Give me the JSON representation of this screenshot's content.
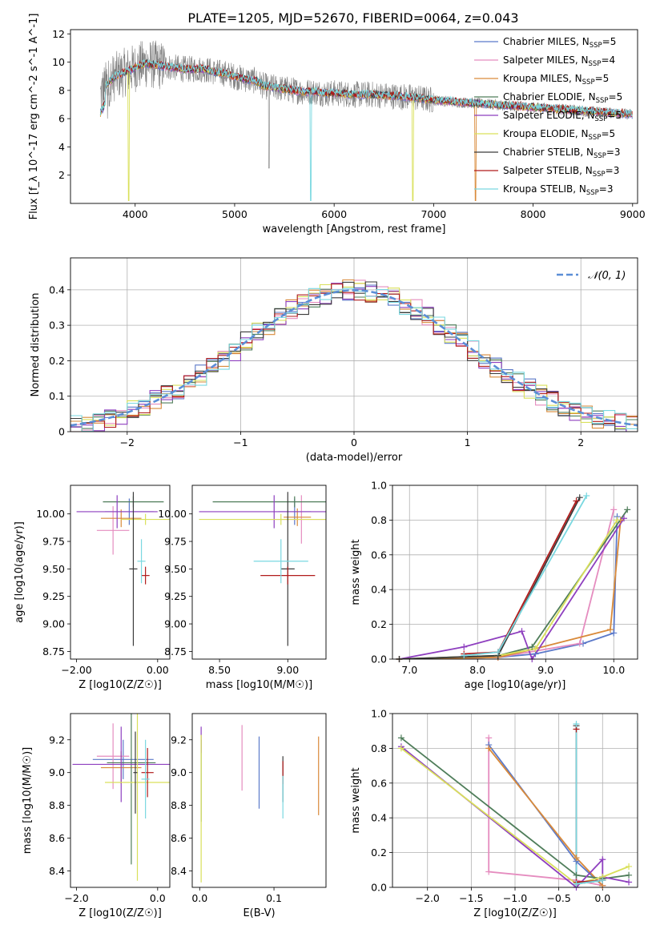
{
  "figure": {
    "title": "PLATE=1205, MJD=52670, FIBERID=0064, z=0.043"
  },
  "colors": {
    "Chabrier MILES": "#5b79c9",
    "Salpeter MILES": "#e58cbf",
    "Kroupa MILES": "#d98a3a",
    "Chabrier ELODIE": "#4f7d5a",
    "Salpeter ELODIE": "#8e3fbf",
    "Kroupa ELODIE": "#d9e05a",
    "Chabrier STELIB": "#3b3b3b",
    "Salpeter STELIB": "#b11b1b",
    "Kroupa STELIB": "#7ad8e0",
    "gaussian": "#5b8ed6"
  },
  "chart_data": [
    {
      "id": "spectrum",
      "type": "line",
      "xlabel": "wavelength [Angstrom, rest frame]",
      "ylabel": "Flux [f_λ 10^-17 erg cm^-2 s^-1 A^-1]",
      "xlim": [
        3350,
        9050
      ],
      "ylim": [
        0,
        12.3
      ],
      "xticks": [
        4000,
        5000,
        6000,
        7000,
        8000,
        9000
      ],
      "yticks": [
        2,
        4,
        6,
        8,
        10,
        12
      ],
      "legend_position": "upper right",
      "legend": [
        {
          "label": "Chabrier MILES",
          "nssp": "5"
        },
        {
          "label": "Salpeter MILES",
          "nssp": "4"
        },
        {
          "label": "Kroupa MILES",
          "nssp": "5"
        },
        {
          "label": "Chabrier ELODIE",
          "nssp": "5"
        },
        {
          "label": "Salpeter ELODIE",
          "nssp": "5"
        },
        {
          "label": "Kroupa ELODIE",
          "nssp": "5"
        },
        {
          "label": "Chabrier STELIB",
          "nssp": "3"
        },
        {
          "label": "Salpeter STELIB",
          "nssp": "3"
        },
        {
          "label": "Kroupa STELIB",
          "nssp": "3"
        }
      ],
      "continuum": {
        "x": [
          3650,
          3700,
          3800,
          3900,
          4000,
          4100,
          4200,
          4300,
          4400,
          4500,
          4600,
          4700,
          4800,
          4900,
          5000,
          5100,
          5200,
          5300,
          5400,
          5500,
          5600,
          5700,
          5800,
          5900,
          6000,
          6200,
          6400,
          6600,
          6800,
          7000,
          7200,
          7400,
          7600,
          7800,
          8000,
          8200,
          8400,
          8600,
          8800,
          9000
        ],
        "y": [
          7.6,
          8.3,
          9.0,
          9.3,
          9.6,
          9.9,
          9.8,
          9.7,
          9.6,
          9.5,
          9.5,
          9.5,
          9.3,
          9.2,
          9.0,
          8.8,
          8.7,
          8.3,
          8.2,
          8.1,
          8.0,
          7.9,
          7.9,
          7.8,
          7.8,
          7.7,
          7.7,
          7.6,
          7.5,
          7.3,
          7.2,
          7.1,
          7.0,
          6.9,
          6.8,
          6.7,
          6.6,
          6.5,
          6.4,
          6.3
        ]
      },
      "absorption_features_model": [
        {
          "x": 3935,
          "y": 0.2,
          "curve": "Kroupa ELODIE"
        },
        {
          "x": 5765,
          "y": 0.2,
          "curve": "Kroupa STELIB"
        },
        {
          "x": 6790,
          "y": 0.2,
          "curve": "Kroupa ELODIE"
        },
        {
          "x": 7420,
          "y": 0.2,
          "curve": "Kroupa MILES"
        }
      ]
    },
    {
      "id": "residuals",
      "type": "histogram",
      "xlabel": "(data-model)/error",
      "ylabel": "Normed distribution",
      "xlim": [
        -2.5,
        2.5
      ],
      "ylim": [
        0,
        0.49
      ],
      "xticks": [
        -2,
        -1,
        0,
        1,
        2
      ],
      "yticks": [
        0.0,
        0.1,
        0.2,
        0.3,
        0.4
      ],
      "grid": true,
      "legend_position": "upper right",
      "gaussian_label": "𝒩(0, 1)",
      "bin_width": 0.1,
      "reference": "gaussian N(0,1) with per-bin scatter per model"
    },
    {
      "id": "Z-age",
      "type": "errorbar",
      "xlabel": "Z [log10(Z/Z☉)]",
      "ylabel": "age  [log10(age/yr)]",
      "xlim": [
        -2.15,
        0.3
      ],
      "ylim": [
        8.68,
        10.26
      ],
      "xticks": [
        -2,
        0
      ],
      "yticks": [
        8.75,
        9.0,
        9.25,
        9.5,
        9.75,
        10.0
      ],
      "points": [
        {
          "model": "Chabrier MILES",
          "x": -0.7,
          "xerr": 0.6,
          "y": 10.02,
          "yerr": 0.12
        },
        {
          "model": "Salpeter MILES",
          "x": -1.1,
          "xerr": 0.4,
          "y": 9.85,
          "yerr": 0.22
        },
        {
          "model": "Kroupa MILES",
          "x": -0.9,
          "xerr": 0.5,
          "y": 9.96,
          "yerr": 0.08
        },
        {
          "model": "Chabrier ELODIE",
          "x": -0.6,
          "xerr": 0.75,
          "y": 10.11,
          "yerr": 0.05
        },
        {
          "model": "Salpeter ELODIE",
          "x": -1.0,
          "xerr": 1.0,
          "y": 10.02,
          "yerr": 0.15
        },
        {
          "model": "Kroupa ELODIE",
          "x": -0.3,
          "xerr": 0.6,
          "y": 9.95,
          "yerr": 0.05
        },
        {
          "model": "Chabrier STELIB",
          "x": -0.6,
          "xerr": 0.1,
          "y": 9.5,
          "yerr": 0.7
        },
        {
          "model": "Salpeter STELIB",
          "x": -0.3,
          "xerr": 0.1,
          "y": 9.44,
          "yerr": 0.08
        },
        {
          "model": "Kroupa STELIB",
          "x": -0.4,
          "xerr": 0.1,
          "y": 9.57,
          "yerr": 0.2
        }
      ]
    },
    {
      "id": "mass-age",
      "type": "errorbar",
      "xlabel": "mass [log10(M/M☉)]",
      "ylabel": "",
      "xlim": [
        8.3,
        9.28
      ],
      "ylim": [
        8.68,
        10.26
      ],
      "xticks": [
        8.5,
        9.0
      ],
      "yticks": [
        8.75,
        9.0,
        9.25,
        9.5,
        9.75,
        10.0
      ],
      "points": [
        {
          "model": "Chabrier MILES",
          "x": 9.05,
          "xerr": 0.12,
          "y": 10.02,
          "yerr": 0.12
        },
        {
          "model": "Salpeter MILES",
          "x": 9.1,
          "xerr": 0.3,
          "y": 9.95,
          "yerr": 0.22
        },
        {
          "model": "Kroupa MILES",
          "x": 9.07,
          "xerr": 0.1,
          "y": 9.97,
          "yerr": 0.08
        },
        {
          "model": "Chabrier ELODIE",
          "x": 9.05,
          "xerr": 0.6,
          "y": 10.11,
          "yerr": 0.05
        },
        {
          "model": "Salpeter ELODIE",
          "x": 8.9,
          "xerr": 0.55,
          "y": 10.02,
          "yerr": 0.15
        },
        {
          "model": "Kroupa ELODIE",
          "x": 8.95,
          "xerr": 0.6,
          "y": 9.95,
          "yerr": 0.05
        },
        {
          "model": "Chabrier STELIB",
          "x": 9.0,
          "xerr": 0.05,
          "y": 9.5,
          "yerr": 0.7
        },
        {
          "model": "Salpeter STELIB",
          "x": 9.0,
          "xerr": 0.2,
          "y": 9.44,
          "yerr": 0.08
        },
        {
          "model": "Kroupa STELIB",
          "x": 8.95,
          "xerr": 0.2,
          "y": 9.57,
          "yerr": 0.2
        }
      ]
    },
    {
      "id": "age-weight",
      "type": "line",
      "xlabel": "age  [log10(age/yr)]",
      "ylabel": "mass weight",
      "xlim": [
        6.75,
        10.35
      ],
      "ylim": [
        0,
        1
      ],
      "xticks": [
        7,
        8,
        9,
        10
      ],
      "yticks": [
        0.0,
        0.2,
        0.4,
        0.6,
        0.8,
        1.0
      ],
      "grid": true,
      "series": [
        {
          "model": "Chabrier MILES",
          "x": [
            6.85,
            8.3,
            8.85,
            9.55,
            10.0,
            10.05
          ],
          "y": [
            0.0,
            0.01,
            0.03,
            0.09,
            0.15,
            0.82
          ]
        },
        {
          "model": "Salpeter MILES",
          "x": [
            6.85,
            8.3,
            9.5,
            10.0
          ],
          "y": [
            0.0,
            0.01,
            0.09,
            0.86
          ]
        },
        {
          "model": "Kroupa MILES",
          "x": [
            6.85,
            8.3,
            8.85,
            9.95,
            10.1
          ],
          "y": [
            0.0,
            0.01,
            0.06,
            0.17,
            0.8
          ]
        },
        {
          "model": "Chabrier ELODIE",
          "x": [
            6.85,
            8.3,
            8.8,
            10.2
          ],
          "y": [
            0.0,
            0.02,
            0.07,
            0.86
          ]
        },
        {
          "model": "Salpeter ELODIE",
          "x": [
            6.85,
            7.8,
            8.65,
            8.8,
            10.15
          ],
          "y": [
            0.0,
            0.07,
            0.16,
            0.0,
            0.81
          ]
        },
        {
          "model": "Kroupa ELODIE",
          "x": [
            6.85,
            8.3,
            8.85,
            10.05
          ],
          "y": [
            0.0,
            0.02,
            0.06,
            0.8
          ]
        },
        {
          "model": "Chabrier STELIB",
          "x": [
            6.85,
            8.3,
            9.5
          ],
          "y": [
            0.0,
            0.02,
            0.93
          ]
        },
        {
          "model": "Salpeter STELIB",
          "x": [
            7.8,
            8.3,
            9.45
          ],
          "y": [
            0.03,
            0.04,
            0.91
          ]
        },
        {
          "model": "Kroupa STELIB",
          "x": [
            7.8,
            8.3,
            9.6
          ],
          "y": [
            0.02,
            0.04,
            0.94
          ]
        }
      ]
    },
    {
      "id": "Z-mass",
      "type": "errorbar",
      "xlabel": "Z [log10(Z/Z☉)]",
      "ylabel": "mass [log10(M/M☉)]",
      "xlim": [
        -2.15,
        0.3
      ],
      "ylim": [
        8.3,
        9.36
      ],
      "xticks": [
        -2,
        0
      ],
      "yticks": [
        8.4,
        8.6,
        8.8,
        9.0,
        9.2
      ],
      "points": [
        {
          "model": "Chabrier MILES",
          "x": -0.85,
          "xerr": 0.75,
          "y": 9.08,
          "yerr": 0.12
        },
        {
          "model": "Salpeter MILES",
          "x": -1.1,
          "xerr": 0.4,
          "y": 9.1,
          "yerr": 0.2
        },
        {
          "model": "Kroupa MILES",
          "x": -0.9,
          "xerr": 0.5,
          "y": 9.03,
          "yerr": 0.1
        },
        {
          "model": "Chabrier ELODIE",
          "x": -0.65,
          "xerr": 0.6,
          "y": 9.06,
          "yerr": 0.62
        },
        {
          "model": "Salpeter ELODIE",
          "x": -0.9,
          "xerr": 1.2,
          "y": 9.05,
          "yerr": 0.23
        },
        {
          "model": "Kroupa ELODIE",
          "x": -0.5,
          "xerr": 0.8,
          "y": 8.94,
          "yerr": 0.6
        },
        {
          "model": "Chabrier STELIB",
          "x": -0.55,
          "xerr": 0.05,
          "y": 9.0,
          "yerr": 0.25
        },
        {
          "model": "Salpeter STELIB",
          "x": -0.25,
          "xerr": 0.15,
          "y": 9.0,
          "yerr": 0.15
        },
        {
          "model": "Kroupa STELIB",
          "x": -0.3,
          "xerr": 0.1,
          "y": 8.96,
          "yerr": 0.24
        }
      ]
    },
    {
      "id": "ebv-mass",
      "type": "errorbar",
      "xlabel": "E(B-V)",
      "ylabel": "",
      "xlim": [
        -0.01,
        0.17
      ],
      "ylim": [
        8.3,
        9.36
      ],
      "xticks": [
        0.0,
        0.1
      ],
      "yticks": [
        8.4,
        8.6,
        8.8,
        9.0,
        9.2
      ],
      "points": [
        {
          "model": "Chabrier MILES",
          "x": 0.08,
          "xerr": 0.0,
          "y": 9.0,
          "yerr": 0.22
        },
        {
          "model": "Salpeter MILES",
          "x": 0.057,
          "xerr": 0.0,
          "y": 9.09,
          "yerr": 0.2
        },
        {
          "model": "Kroupa MILES",
          "x": 0.16,
          "xerr": 0.0,
          "y": 8.98,
          "yerr": 0.24
        },
        {
          "model": "Chabrier ELODIE",
          "x": 0.002,
          "xerr": 0.0,
          "y": 8.95,
          "yerr": 0.25
        },
        {
          "model": "Salpeter ELODIE",
          "x": 0.002,
          "xerr": 0.0,
          "y": 9.2,
          "yerr": 0.08
        },
        {
          "model": "Kroupa ELODIE",
          "x": 0.002,
          "xerr": 0.0,
          "y": 8.78,
          "yerr": 0.45
        },
        {
          "model": "Chabrier STELIB",
          "x": 0.112,
          "xerr": 0.0,
          "y": 8.96,
          "yerr": 0.14
        },
        {
          "model": "Salpeter STELIB",
          "x": 0.112,
          "xerr": 0.0,
          "y": 9.0,
          "yerr": 0.07
        },
        {
          "model": "Kroupa STELIB",
          "x": 0.112,
          "xerr": 0.0,
          "y": 8.85,
          "yerr": 0.13
        }
      ]
    },
    {
      "id": "Z-weight",
      "type": "line",
      "xlabel": "Z [log10(Z/Z☉)]",
      "ylabel": "mass weight",
      "xlim": [
        -2.4,
        0.4
      ],
      "ylim": [
        0,
        1
      ],
      "xticks": [
        -2.0,
        -1.5,
        -1.0,
        -0.5,
        0.0
      ],
      "yticks": [
        0.0,
        0.2,
        0.4,
        0.6,
        0.8,
        1.0
      ],
      "grid": true,
      "series": [
        {
          "model": "Chabrier MILES",
          "x": [
            -1.3,
            -0.3,
            0.0
          ],
          "y": [
            0.82,
            0.15,
            0.01
          ]
        },
        {
          "model": "Salpeter MILES",
          "x": [
            -1.3,
            -1.3,
            -0.3,
            0.0
          ],
          "y": [
            0.86,
            0.09,
            0.04,
            0.01
          ]
        },
        {
          "model": "Kroupa MILES",
          "x": [
            -1.3,
            -0.3,
            0.0
          ],
          "y": [
            0.8,
            0.17,
            0.01
          ]
        },
        {
          "model": "Chabrier ELODIE",
          "x": [
            -2.3,
            -0.3,
            0.0,
            0.3
          ],
          "y": [
            0.86,
            0.07,
            0.05,
            0.07
          ]
        },
        {
          "model": "Salpeter ELODIE",
          "x": [
            -2.3,
            -0.3,
            0.0,
            0.0,
            0.3
          ],
          "y": [
            0.81,
            0.0,
            0.16,
            0.06,
            0.03
          ]
        },
        {
          "model": "Kroupa ELODIE",
          "x": [
            -2.3,
            -0.3,
            0.0,
            0.3
          ],
          "y": [
            0.8,
            0.02,
            0.06,
            0.12
          ]
        },
        {
          "model": "Chabrier STELIB",
          "x": [
            -0.3,
            -0.3,
            0.0
          ],
          "y": [
            0.93,
            0.02,
            0.04
          ]
        },
        {
          "model": "Salpeter STELIB",
          "x": [
            -0.3,
            -0.3,
            0.0
          ],
          "y": [
            0.91,
            0.03,
            0.04
          ]
        },
        {
          "model": "Kroupa STELIB",
          "x": [
            -0.3,
            -0.3,
            0.0
          ],
          "y": [
            0.94,
            0.02,
            0.04
          ]
        }
      ]
    }
  ]
}
